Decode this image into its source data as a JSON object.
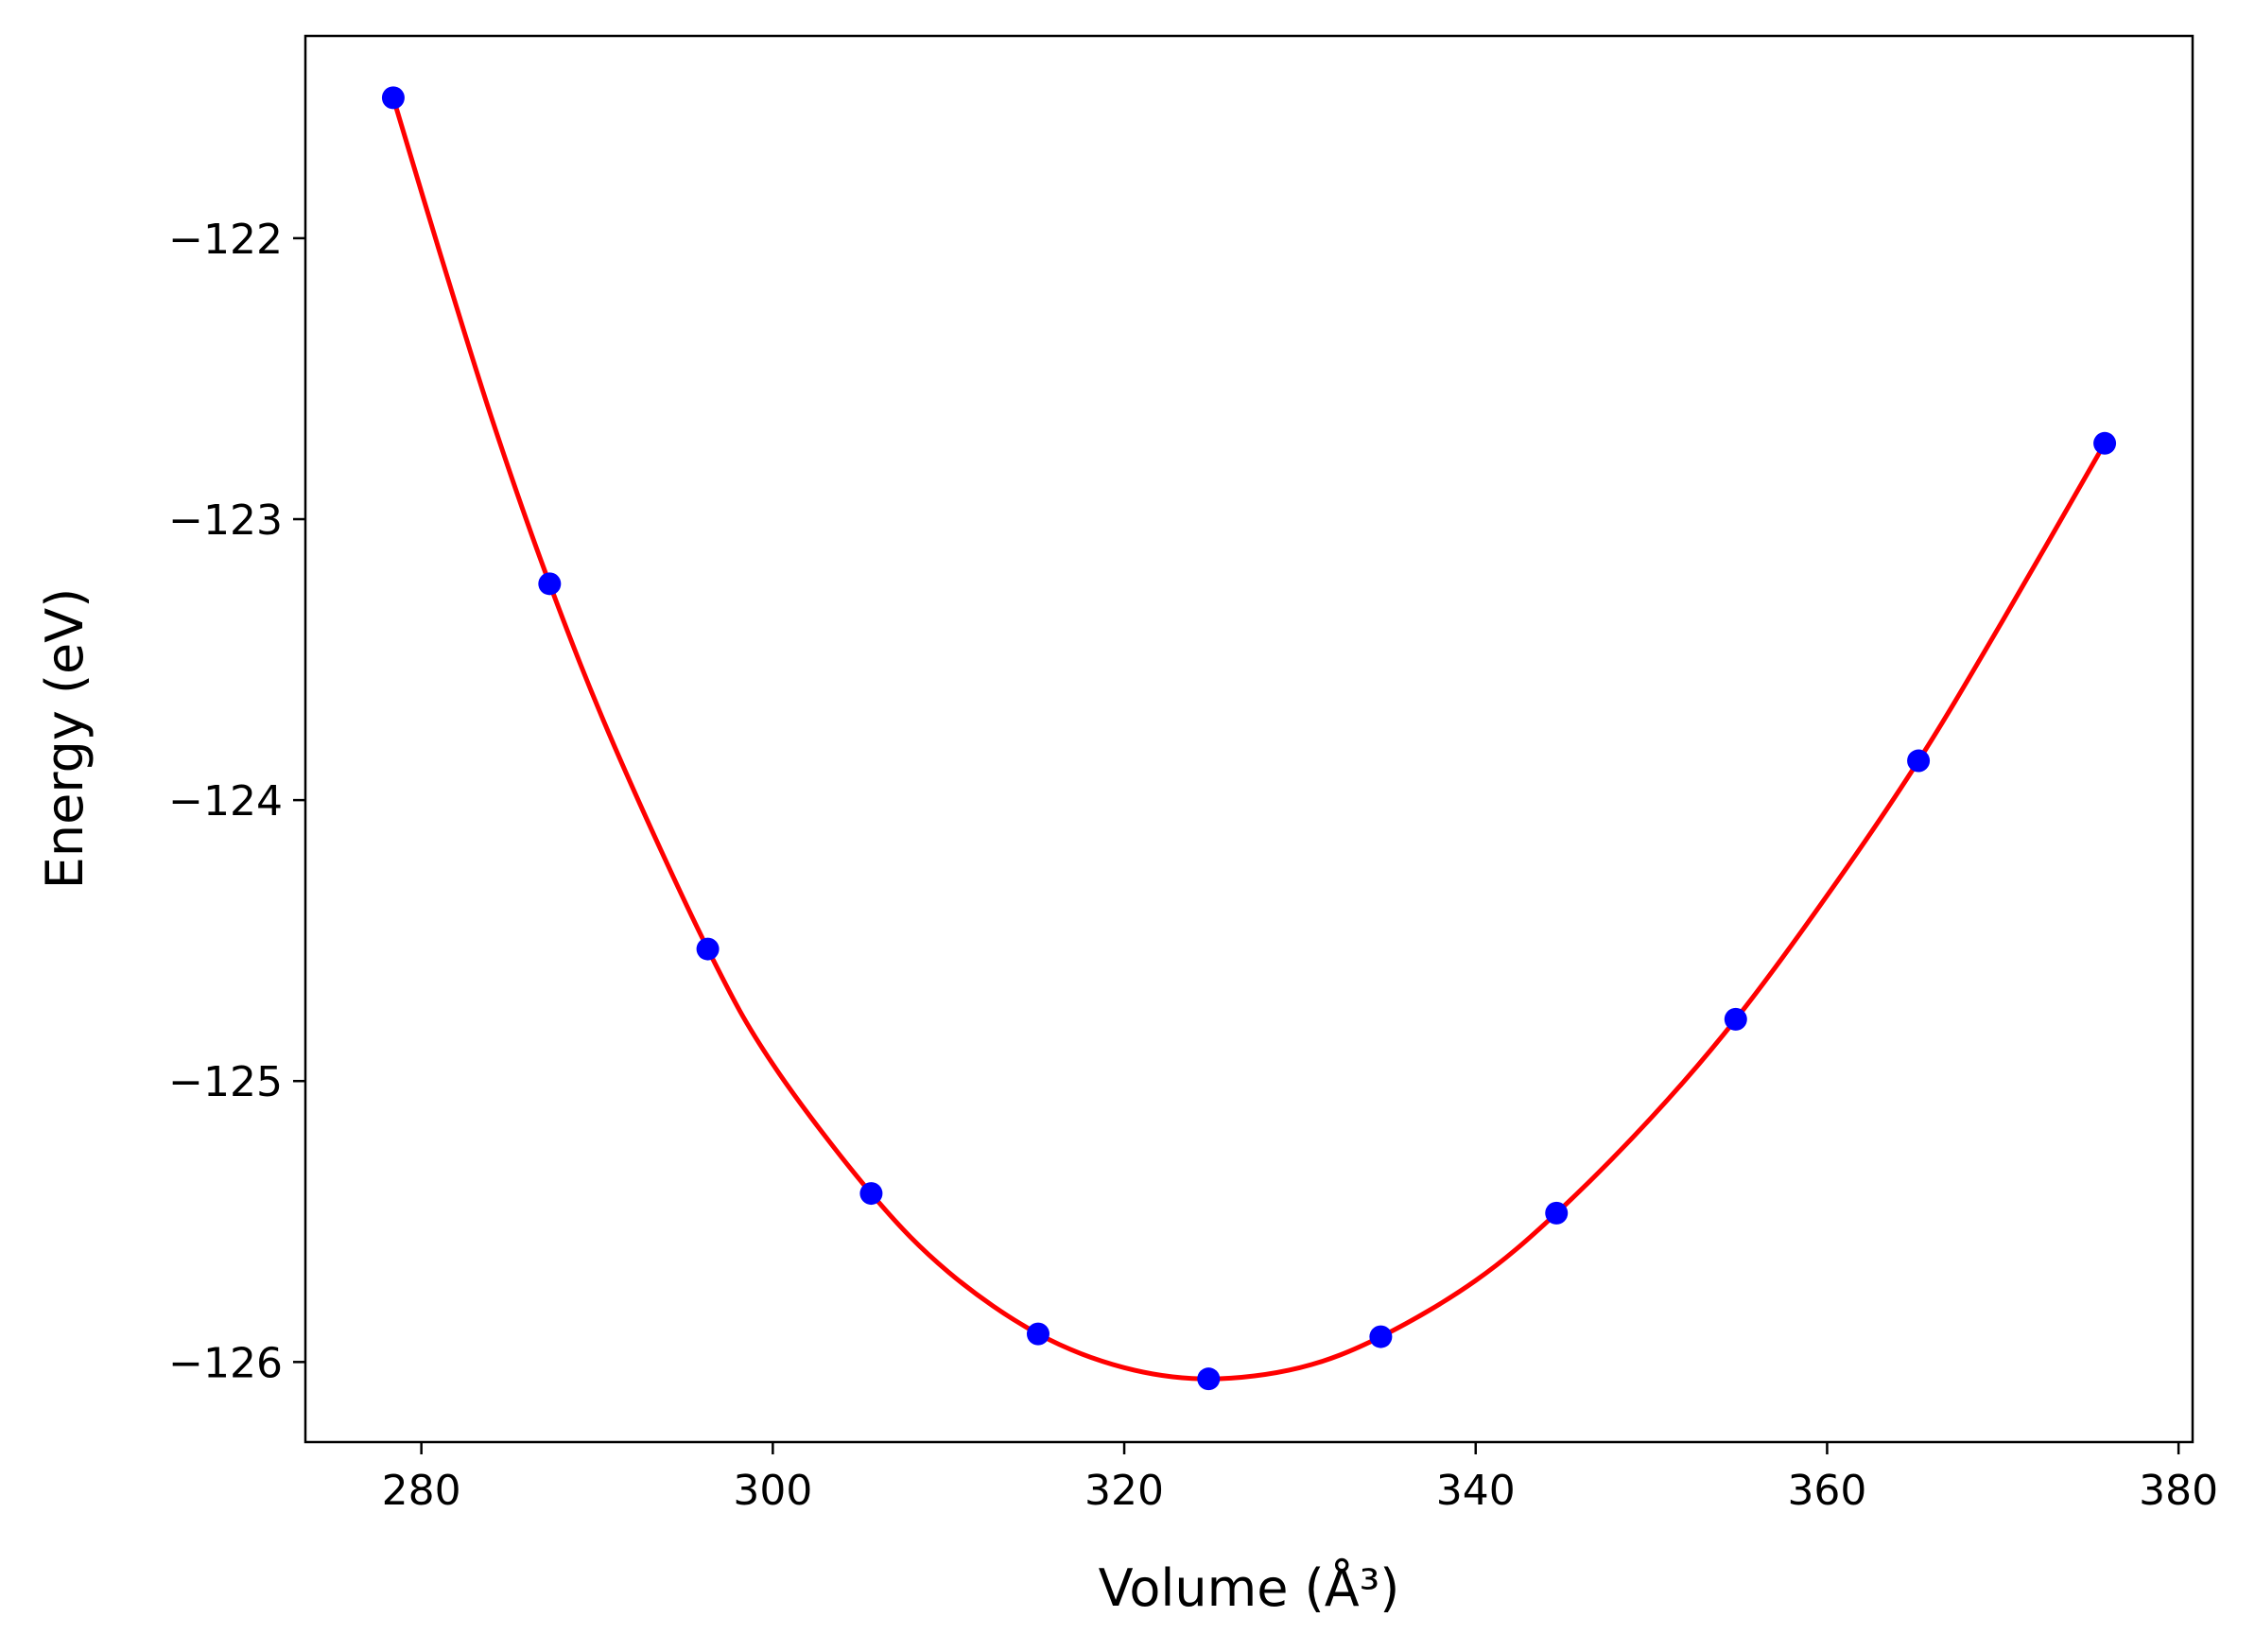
{
  "chart_data": {
    "type": "scatter",
    "title": "",
    "xlabel": "Volume (Å³)",
    "ylabel": "Energy (eV)",
    "xlim": [
      273.4,
      380.8
    ],
    "ylim": [
      -126.285,
      -121.28
    ],
    "x_ticks": [
      280,
      300,
      320,
      340,
      360,
      380
    ],
    "x_tick_labels": [
      "280",
      "300",
      "320",
      "340",
      "360",
      "380"
    ],
    "y_ticks": [
      -122,
      -123,
      -124,
      -125,
      -126
    ],
    "y_tick_labels": [
      "−122",
      "−123",
      "−124",
      "−125",
      "−126"
    ],
    "grid": false,
    "legend": "none",
    "series": [
      {
        "kind": "points",
        "color": "#0000ff",
        "x": [
          278.4,
          287.3,
          296.3,
          305.6,
          315.1,
          324.8,
          334.6,
          344.6,
          354.8,
          365.2,
          375.8
        ],
        "y": [
          -121.5,
          -123.23,
          -124.53,
          -125.4,
          -125.9,
          -126.06,
          -125.91,
          -125.47,
          -124.78,
          -123.86,
          -122.73
        ]
      },
      {
        "kind": "fit-curve",
        "color": "#ff0000",
        "x": [
          278.4,
          281.0,
          284.0,
          287.3,
          291.0,
          296.3,
          300.0,
          305.6,
          310.0,
          315.1,
          320.0,
          324.8,
          330.0,
          334.6,
          340.0,
          344.6,
          350.0,
          354.8,
          360.0,
          365.2,
          370.0,
          375.8
        ],
        "y": [
          -121.5,
          -122.04,
          -122.64,
          -123.23,
          -123.81,
          -124.53,
          -124.94,
          -125.4,
          -125.68,
          -125.9,
          -126.02,
          -126.06,
          -126.02,
          -125.91,
          -125.71,
          -125.47,
          -125.13,
          -124.78,
          -124.34,
          -123.86,
          -123.36,
          -122.73
        ]
      }
    ]
  }
}
